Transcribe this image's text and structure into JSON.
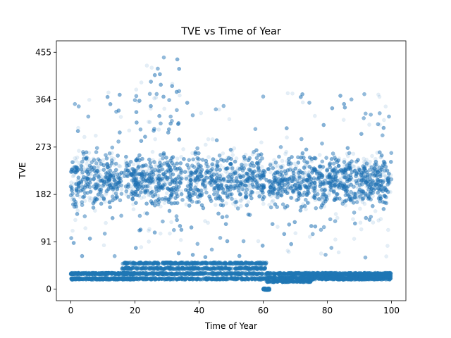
{
  "chart_data": {
    "type": "scatter",
    "title": "TVE vs Time of Year",
    "xlabel": "Time of Year",
    "ylabel": "TVE",
    "xlim": [
      -4.5,
      104.5
    ],
    "ylim": [
      -22,
      477
    ],
    "xticks": [
      0,
      20,
      40,
      60,
      80,
      100
    ],
    "yticks": [
      0,
      91,
      182,
      273,
      364,
      455
    ],
    "grid": false,
    "legend": "none",
    "color": "#1f77b4",
    "alpha": 0.12,
    "point_count_estimate": 30000,
    "dense_band": {
      "x_range": [
        0,
        100
      ],
      "core_y": [
        130,
        300
      ],
      "upper_scatter_y_max": 455,
      "lower_scatter_y_min": 60
    },
    "baseline_clusters": [
      {
        "x_range": [
          0,
          20
        ],
        "y_values": [
          20,
          30
        ]
      },
      {
        "x_range": [
          16,
          61
        ],
        "y_values": [
          20,
          30,
          40,
          50
        ]
      },
      {
        "x_range": [
          60,
          62
        ],
        "y_values": [
          0
        ]
      },
      {
        "x_range": [
          61,
          75
        ],
        "y_values": [
          15,
          22,
          30
        ]
      },
      {
        "x_range": [
          75,
          100
        ],
        "y_values": [
          20,
          25,
          30
        ]
      }
    ]
  }
}
